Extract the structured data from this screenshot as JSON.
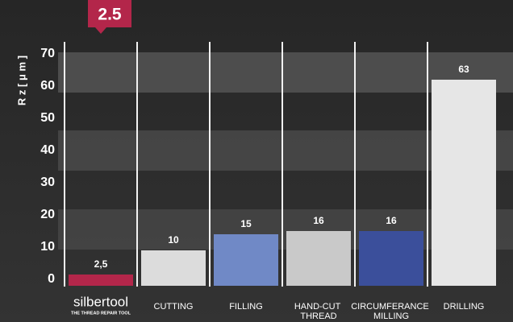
{
  "chart_data": {
    "type": "bar",
    "y_label": "R z [ μ m ]",
    "highlight": "2.5",
    "categories": [
      "silbertool",
      "CUTTING",
      "FILLING",
      "HAND-CUT THREAD",
      "CIRCUMFERANCE MILLING",
      "DRILLING"
    ],
    "logo_tagline": "THE THREAD REPAIR TOOL",
    "values": [
      2.5,
      10,
      15,
      16,
      16,
      63
    ],
    "value_labels": [
      "2,5",
      "10",
      "15",
      "16",
      "16",
      "63"
    ],
    "colors": [
      "#b3264a",
      "#dcdcdc",
      "#7089c6",
      "#c9c9c9",
      "#3b4f9b",
      "#e6e6e6"
    ],
    "ylim": [
      0,
      70
    ],
    "yticks": [
      0,
      10,
      20,
      30,
      40,
      50,
      60,
      70
    ]
  }
}
